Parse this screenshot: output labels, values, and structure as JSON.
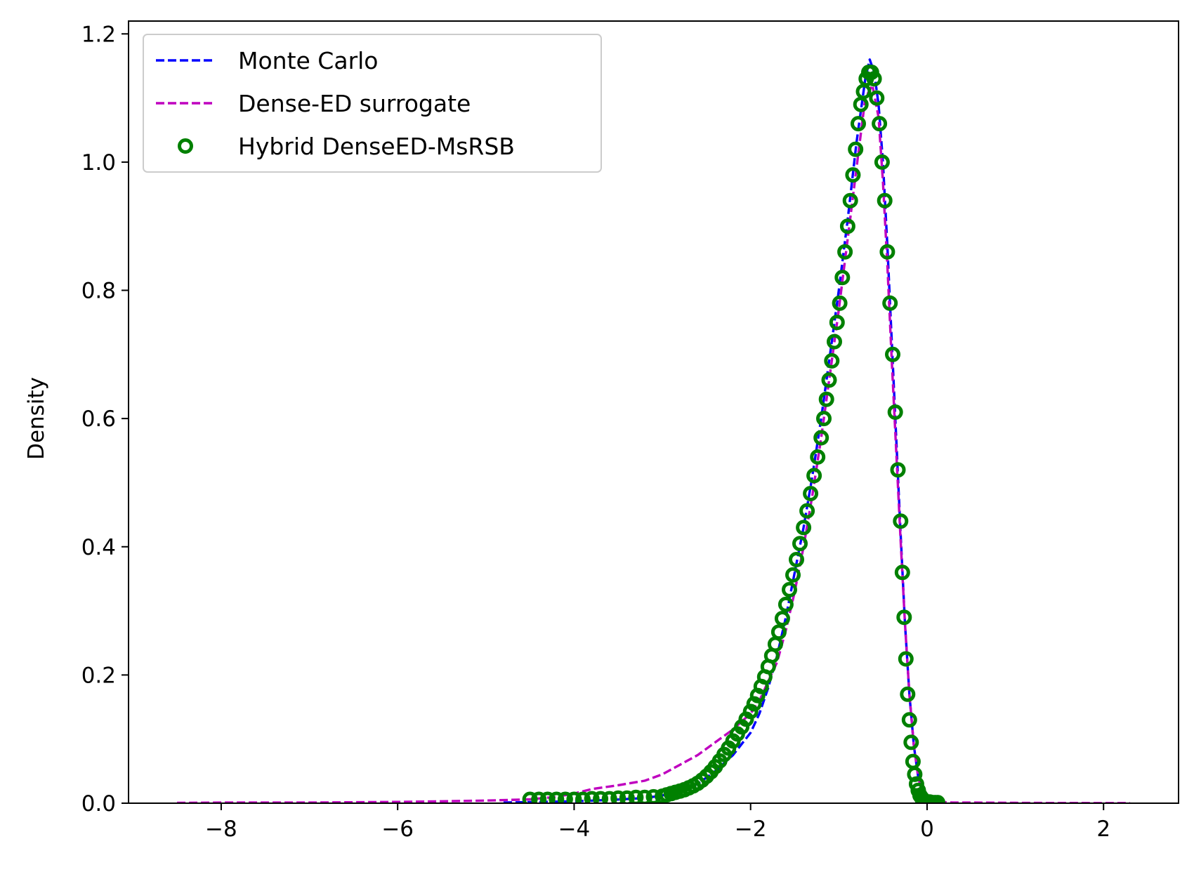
{
  "chart_data": {
    "type": "line",
    "title": "",
    "xlabel": "",
    "ylabel": "Density",
    "xlim": [
      -9.05,
      2.85
    ],
    "ylim": [
      0.0,
      1.22
    ],
    "x_ticks": [
      -8,
      -6,
      -4,
      -2,
      0,
      2
    ],
    "x_tick_labels": [
      "−8",
      "−6",
      "−4",
      "−2",
      "0",
      "2"
    ],
    "y_ticks": [
      0.0,
      0.2,
      0.4,
      0.6,
      0.8,
      1.0,
      1.2
    ],
    "y_tick_labels": [
      "0.0",
      "0.2",
      "0.4",
      "0.6",
      "0.8",
      "1.0",
      "1.2"
    ],
    "grid": false,
    "legend_position": "top-left",
    "series": [
      {
        "name": "Monte Carlo",
        "style": "dashed-line",
        "color": "#0000ff",
        "x": [
          -4.8,
          -4.4,
          -4.0,
          -3.6,
          -3.2,
          -3.0,
          -2.8,
          -2.6,
          -2.4,
          -2.2,
          -2.0,
          -1.9,
          -1.8,
          -1.7,
          -1.6,
          -1.5,
          -1.4,
          -1.3,
          -1.2,
          -1.1,
          -1.0,
          -0.9,
          -0.8,
          -0.7,
          -0.65,
          -0.6,
          -0.55,
          -0.5,
          -0.45,
          -0.4,
          -0.35,
          -0.3,
          -0.25,
          -0.2,
          -0.15,
          -0.1,
          -0.05,
          0.0,
          0.05,
          0.1
        ],
        "y": [
          0.001,
          0.002,
          0.003,
          0.005,
          0.008,
          0.012,
          0.02,
          0.03,
          0.05,
          0.075,
          0.11,
          0.14,
          0.18,
          0.23,
          0.29,
          0.36,
          0.43,
          0.51,
          0.6,
          0.7,
          0.8,
          0.91,
          1.03,
          1.13,
          1.16,
          1.14,
          1.09,
          1.0,
          0.87,
          0.72,
          0.57,
          0.42,
          0.28,
          0.17,
          0.09,
          0.04,
          0.015,
          0.005,
          0.002,
          0.0
        ]
      },
      {
        "name": "Dense-ED surrogate",
        "style": "dashed-line",
        "color": "#bf00bf",
        "x": [
          -8.5,
          -8.0,
          -7.0,
          -6.0,
          -5.5,
          -5.0,
          -4.5,
          -4.2,
          -4.0,
          -3.8,
          -3.5,
          -3.2,
          -3.0,
          -2.8,
          -2.6,
          -2.4,
          -2.2,
          -2.0,
          -1.9,
          -1.8,
          -1.7,
          -1.6,
          -1.5,
          -1.4,
          -1.3,
          -1.2,
          -1.1,
          -1.0,
          -0.9,
          -0.8,
          -0.7,
          -0.62,
          -0.55,
          -0.5,
          -0.45,
          -0.4,
          -0.35,
          -0.3,
          -0.25,
          -0.2,
          -0.15,
          -0.1,
          -0.05,
          0.0,
          0.05,
          0.1,
          0.3,
          0.5,
          1.0,
          1.5,
          2.0,
          2.3
        ],
        "y": [
          0.0005,
          0.001,
          0.001,
          0.002,
          0.003,
          0.004,
          0.006,
          0.01,
          0.015,
          0.022,
          0.028,
          0.035,
          0.045,
          0.06,
          0.075,
          0.095,
          0.115,
          0.14,
          0.16,
          0.19,
          0.22,
          0.27,
          0.33,
          0.4,
          0.48,
          0.57,
          0.67,
          0.77,
          0.88,
          0.99,
          1.1,
          1.12,
          1.07,
          0.97,
          0.84,
          0.69,
          0.55,
          0.41,
          0.28,
          0.17,
          0.09,
          0.04,
          0.015,
          0.006,
          0.003,
          0.002,
          0.001,
          0.001,
          0.0005,
          0.0003,
          0.0002,
          0.0001
        ]
      },
      {
        "name": "Hybrid DenseED-MsRSB",
        "style": "open-circles",
        "color": "#008000",
        "x": [
          -4.5,
          -4.4,
          -4.3,
          -4.2,
          -4.1,
          -4.0,
          -3.9,
          -3.8,
          -3.7,
          -3.6,
          -3.5,
          -3.4,
          -3.3,
          -3.2,
          -3.1,
          -3.0,
          -2.95,
          -2.9,
          -2.85,
          -2.8,
          -2.75,
          -2.7,
          -2.65,
          -2.6,
          -2.55,
          -2.5,
          -2.45,
          -2.4,
          -2.35,
          -2.3,
          -2.25,
          -2.2,
          -2.15,
          -2.1,
          -2.05,
          -2.0,
          -1.96,
          -1.92,
          -1.88,
          -1.84,
          -1.8,
          -1.76,
          -1.72,
          -1.68,
          -1.64,
          -1.6,
          -1.56,
          -1.52,
          -1.48,
          -1.44,
          -1.4,
          -1.36,
          -1.32,
          -1.28,
          -1.24,
          -1.2,
          -1.17,
          -1.14,
          -1.11,
          -1.08,
          -1.05,
          -1.02,
          -0.99,
          -0.96,
          -0.93,
          -0.9,
          -0.87,
          -0.84,
          -0.81,
          -0.78,
          -0.75,
          -0.72,
          -0.69,
          -0.66,
          -0.63,
          -0.6,
          -0.57,
          -0.54,
          -0.51,
          -0.48,
          -0.45,
          -0.42,
          -0.39,
          -0.36,
          -0.33,
          -0.3,
          -0.28,
          -0.26,
          -0.24,
          -0.22,
          -0.2,
          -0.18,
          -0.16,
          -0.14,
          -0.12,
          -0.1,
          -0.08,
          -0.06,
          -0.04,
          -0.02,
          0.0,
          0.03,
          0.06,
          0.09,
          0.12
        ],
        "y": [
          0.006,
          0.006,
          0.006,
          0.006,
          0.006,
          0.006,
          0.006,
          0.007,
          0.007,
          0.007,
          0.008,
          0.008,
          0.009,
          0.009,
          0.01,
          0.011,
          0.013,
          0.015,
          0.017,
          0.019,
          0.021,
          0.024,
          0.027,
          0.031,
          0.036,
          0.042,
          0.049,
          0.057,
          0.066,
          0.076,
          0.086,
          0.097,
          0.108,
          0.119,
          0.131,
          0.143,
          0.155,
          0.168,
          0.182,
          0.197,
          0.213,
          0.23,
          0.248,
          0.267,
          0.288,
          0.31,
          0.333,
          0.356,
          0.38,
          0.405,
          0.43,
          0.456,
          0.483,
          0.511,
          0.54,
          0.57,
          0.6,
          0.63,
          0.66,
          0.69,
          0.72,
          0.75,
          0.78,
          0.82,
          0.86,
          0.9,
          0.94,
          0.98,
          1.02,
          1.06,
          1.09,
          1.11,
          1.13,
          1.14,
          1.14,
          1.13,
          1.1,
          1.06,
          1.0,
          0.94,
          0.86,
          0.78,
          0.7,
          0.61,
          0.52,
          0.44,
          0.36,
          0.29,
          0.225,
          0.17,
          0.13,
          0.095,
          0.065,
          0.045,
          0.03,
          0.02,
          0.012,
          0.008,
          0.005,
          0.003,
          0.002,
          0.002,
          0.001,
          0.001,
          0.001
        ]
      }
    ]
  }
}
